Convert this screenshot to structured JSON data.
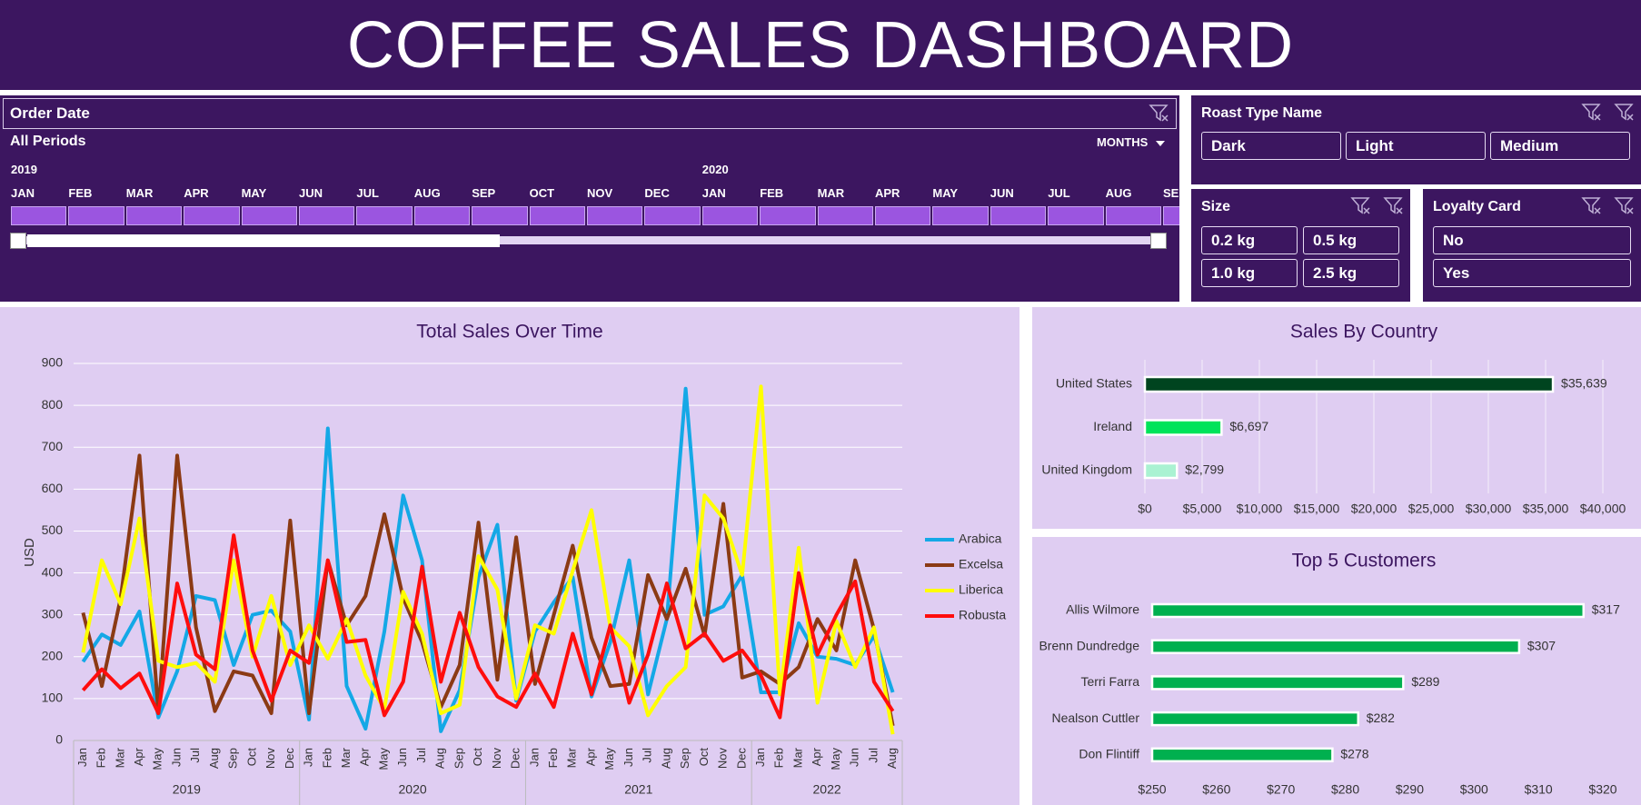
{
  "header": {
    "title": "COFFEE SALES DASHBOARD"
  },
  "filters": {
    "order_date": {
      "title": "Order Date",
      "period": "All Periods",
      "level": "MONTHS",
      "years": [
        "2019",
        "2020"
      ],
      "months": [
        "JAN",
        "FEB",
        "MAR",
        "APR",
        "MAY",
        "JUN",
        "JUL",
        "AUG",
        "SEP",
        "OCT",
        "NOV",
        "DEC",
        "JAN",
        "FEB",
        "MAR",
        "APR",
        "MAY",
        "JUN",
        "JUL",
        "AUG",
        "SEP"
      ]
    },
    "slicers": [
      {
        "title": "Roast Type Name",
        "items": [
          "Dark",
          "Light",
          "Medium"
        ]
      },
      {
        "title": "Size",
        "items": [
          "0.2 kg",
          "0.5 kg",
          "1.0 kg",
          "2.5 kg"
        ]
      },
      {
        "title": "Loyalty Card",
        "items": [
          "No",
          "Yes"
        ]
      }
    ]
  },
  "chart_data": [
    {
      "type": "line",
      "title": "Total Sales Over Time",
      "y_label": "USD",
      "categories": [
        "Jan",
        "Feb",
        "Mar",
        "Apr",
        "May",
        "Jun",
        "Jul",
        "Aug",
        "Sep",
        "Oct",
        "Nov",
        "Dec",
        "Jan",
        "Feb",
        "Mar",
        "Apr",
        "May",
        "Jun",
        "Jul",
        "Aug",
        "Sep",
        "Oct",
        "Nov",
        "Dec",
        "Jan",
        "Feb",
        "Mar",
        "Apr",
        "May",
        "Jun",
        "Jul",
        "Aug",
        "Sep",
        "Oct",
        "Nov",
        "Dec",
        "Jan",
        "Feb",
        "Mar",
        "Apr",
        "May",
        "Jun",
        "Jul",
        "Aug"
      ],
      "x_groups": [
        "2019",
        "2020",
        "2021",
        "2022"
      ],
      "series": [
        {
          "name": "Arabica",
          "color": "#14a8e6",
          "values": [
            188,
            253,
            228,
            308,
            55,
            165,
            345,
            335,
            180,
            300,
            310,
            260,
            50,
            745,
            130,
            28,
            260,
            585,
            430,
            22,
            120,
            390,
            515,
            95,
            260,
            330,
            390,
            105,
            235,
            430,
            110,
            290,
            840,
            300,
            320,
            395,
            115,
            115,
            280,
            200,
            195,
            180,
            250,
            115
          ]
        },
        {
          "name": "Excelsa",
          "color": "#8b3a14",
          "values": [
            305,
            130,
            340,
            680,
            65,
            680,
            270,
            70,
            165,
            155,
            65,
            525,
            65,
            430,
            275,
            345,
            540,
            340,
            235,
            80,
            180,
            520,
            145,
            485,
            135,
            300,
            465,
            245,
            130,
            135,
            395,
            290,
            410,
            250,
            565,
            150,
            165,
            135,
            175,
            290,
            215,
            430,
            265,
            35
          ]
        },
        {
          "name": "Liberica",
          "color": "#ffff00",
          "values": [
            210,
            430,
            325,
            530,
            190,
            175,
            185,
            140,
            430,
            200,
            345,
            180,
            275,
            195,
            290,
            155,
            75,
            355,
            255,
            65,
            85,
            440,
            360,
            100,
            275,
            255,
            405,
            550,
            270,
            225,
            60,
            130,
            175,
            585,
            530,
            395,
            845,
            110,
            460,
            90,
            285,
            175,
            270,
            15
          ]
        },
        {
          "name": "Robusta",
          "color": "#ff0d0d",
          "values": [
            120,
            170,
            125,
            160,
            65,
            375,
            205,
            170,
            490,
            215,
            95,
            215,
            185,
            430,
            235,
            240,
            60,
            140,
            415,
            140,
            305,
            175,
            105,
            80,
            160,
            80,
            255,
            110,
            275,
            90,
            205,
            375,
            220,
            255,
            190,
            215,
            155,
            55,
            400,
            205,
            300,
            380,
            140,
            70
          ]
        }
      ],
      "ylim": [
        0,
        900
      ],
      "yticks": [
        0,
        100,
        200,
        300,
        400,
        500,
        600,
        700,
        800,
        900
      ],
      "grid": true,
      "legend": "right"
    },
    {
      "type": "bar",
      "orientation": "horizontal",
      "title": "Sales By Country",
      "categories": [
        "United States",
        "Ireland",
        "United Kingdom"
      ],
      "values": [
        35639,
        6697,
        2799
      ],
      "value_labels": [
        "$35,639",
        "$6,697",
        "$2,799"
      ],
      "colors": [
        "#00441f",
        "#00e35a",
        "#aaf2d2"
      ],
      "xlim": [
        0,
        40000
      ],
      "xticks": [
        {
          "value": 0,
          "label": "$0"
        },
        {
          "value": 5000,
          "label": "$5,000"
        },
        {
          "value": 10000,
          "label": "$10,000"
        },
        {
          "value": 15000,
          "label": "$15,000"
        },
        {
          "value": 20000,
          "label": "$20,000"
        },
        {
          "value": 25000,
          "label": "$25,000"
        },
        {
          "value": 30000,
          "label": "$30,000"
        },
        {
          "value": 35000,
          "label": "$35,000"
        },
        {
          "value": 40000,
          "label": "$40,000"
        }
      ],
      "grid": true
    },
    {
      "type": "bar",
      "orientation": "horizontal",
      "title": "Top 5 Customers",
      "categories": [
        "Allis Wilmore",
        "Brenn Dundredge",
        "Terri Farra",
        "Nealson Cuttler",
        "Don Flintiff"
      ],
      "values": [
        317,
        307,
        289,
        282,
        278
      ],
      "value_labels": [
        "$317",
        "$307",
        "$289",
        "$282",
        "$278"
      ],
      "color": "#00b04f",
      "xlim": [
        250,
        320
      ],
      "xticks": [
        {
          "value": 250,
          "label": "$250"
        },
        {
          "value": 260,
          "label": "$260"
        },
        {
          "value": 270,
          "label": "$270"
        },
        {
          "value": 280,
          "label": "$280"
        },
        {
          "value": 290,
          "label": "$290"
        },
        {
          "value": 300,
          "label": "$300"
        },
        {
          "value": 310,
          "label": "$310"
        },
        {
          "value": 320,
          "label": "$320"
        }
      ],
      "grid": false
    }
  ]
}
